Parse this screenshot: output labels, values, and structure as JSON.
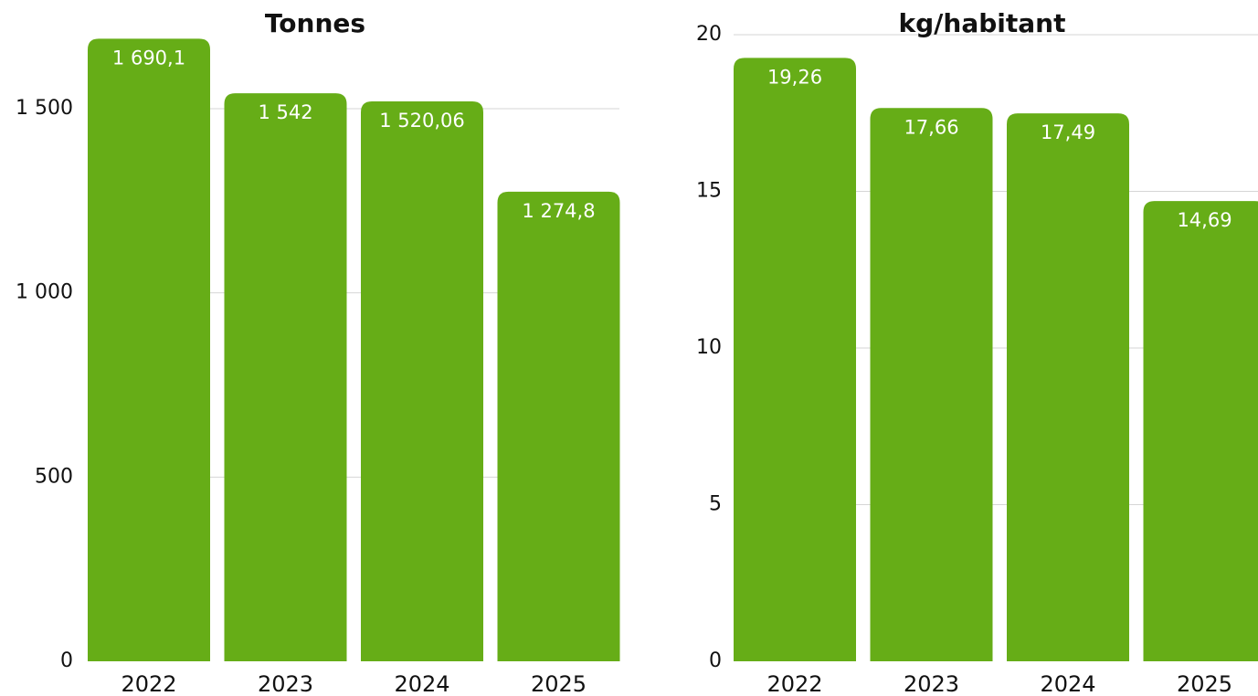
{
  "chart_data": [
    {
      "type": "bar",
      "title": "Tonnes",
      "categories": [
        "2022",
        "2023",
        "2024",
        "2025"
      ],
      "values": [
        1690.1,
        1542,
        1520.06,
        1274.8
      ],
      "value_labels": [
        "1 690,1",
        "1 542",
        "1 520,06",
        "1 274,8"
      ],
      "color": "#66ad17",
      "ylim": [
        0,
        1750
      ],
      "yticks": [
        0,
        500,
        {
          "value": 1000,
          "label": "1 000"
        },
        {
          "value": 1500,
          "label": "1 500"
        }
      ],
      "grid": true
    },
    {
      "type": "bar",
      "title": "kg/habitant",
      "categories": [
        "2022",
        "2023",
        "2024",
        "2025"
      ],
      "values": [
        19.26,
        17.66,
        17.49,
        14.69
      ],
      "value_labels": [
        "19,26",
        "17,66",
        "17,49",
        "14,69"
      ],
      "color": "#66ad17",
      "ylim": [
        0,
        20
      ],
      "yticks": [
        0,
        5,
        10,
        15,
        20
      ],
      "grid": true
    }
  ]
}
